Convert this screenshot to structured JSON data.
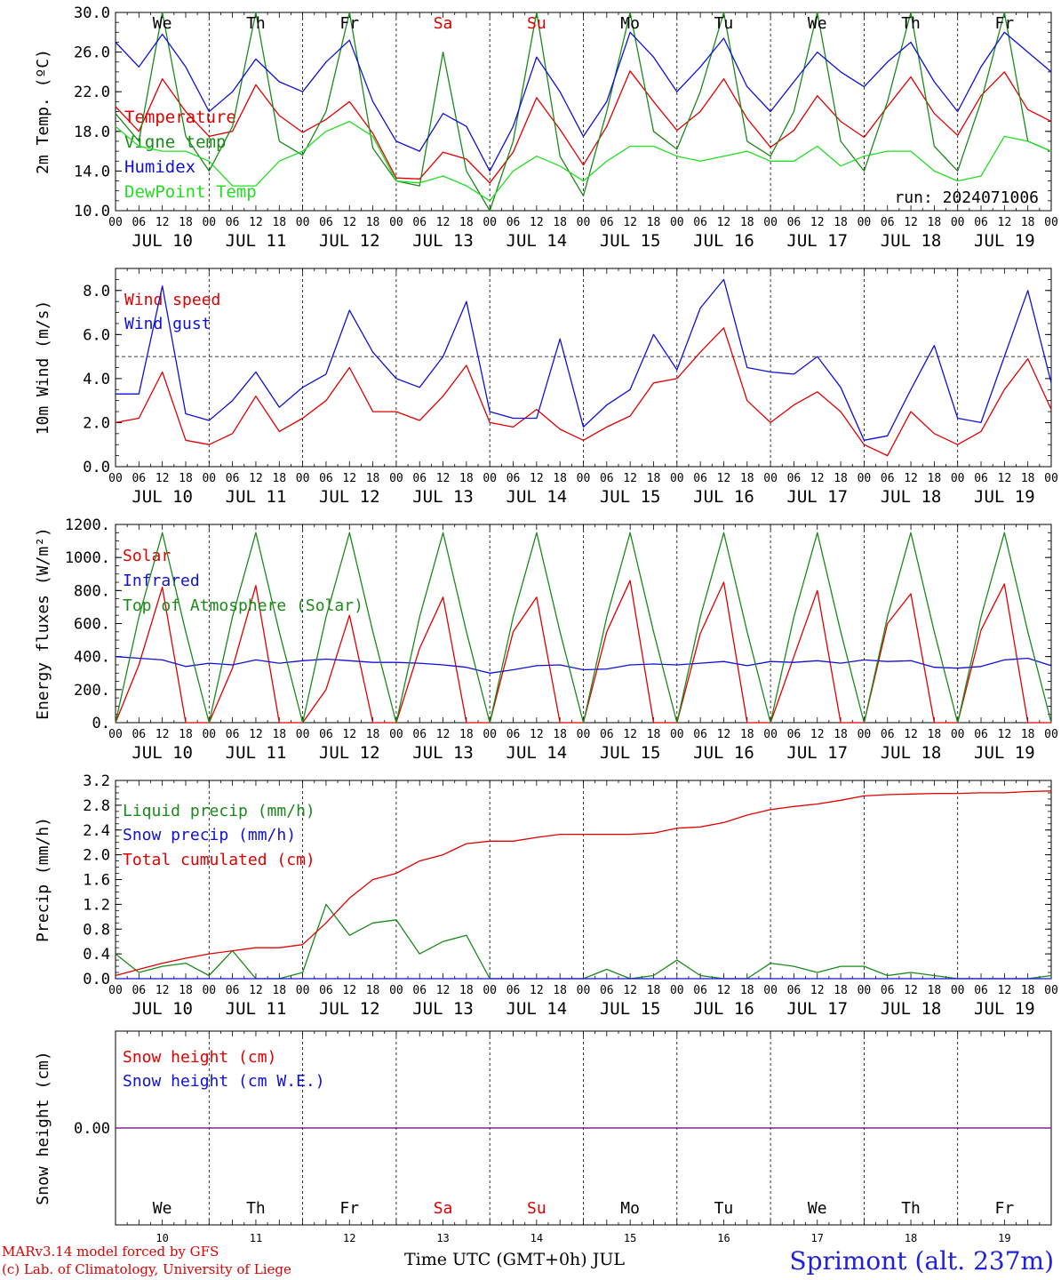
{
  "days": [
    "We",
    "Th",
    "Fr",
    "Sa",
    "Su",
    "Mo",
    "Tu",
    "We",
    "Th",
    "Fr"
  ],
  "weekend": [
    false,
    false,
    false,
    true,
    true,
    false,
    false,
    false,
    false,
    false
  ],
  "dates": [
    "JUL 10",
    "JUL 11",
    "JUL 12",
    "JUL 13",
    "JUL 14",
    "JUL 15",
    "JUL 16",
    "JUL 17",
    "JUL 18",
    "JUL 19"
  ],
  "day_numbers": [
    "10",
    "11",
    "12",
    "13",
    "14",
    "15",
    "16",
    "17",
    "18",
    "19"
  ],
  "hour_labels": [
    "00",
    "06",
    "12",
    "18"
  ],
  "final_hour_label": "00",
  "footer": {
    "credit_line1": "MARv3.14 model forced by GFS",
    "credit_line2": "(c) Lab. of Climatology, University of Liege",
    "xlabel": "Time UTC (GMT+0h) JUL",
    "station": "Sprimont (alt. 237m)"
  },
  "colors": {
    "red": "#e00000",
    "darkgreen": "#1a8a1a",
    "blue": "#1010d8",
    "lightgreen": "#22dd22",
    "purple": "#7a1a8a"
  },
  "chart_data": [
    {
      "type": "line",
      "ylabel": "2m Temp. (ºC)",
      "ylim": [
        10,
        30
      ],
      "yticks": [
        "10.0",
        "14.0",
        "18.0",
        "22.0",
        "26.0",
        "30.0"
      ],
      "annotation": "run: 2024071006",
      "x_hours": [
        0,
        6,
        12,
        18,
        24,
        30,
        36,
        42,
        48,
        54,
        60,
        66,
        72,
        78,
        84,
        90,
        96,
        102,
        108,
        114,
        120,
        126,
        132,
        138,
        144,
        150,
        156,
        162,
        168,
        174,
        180,
        186,
        192,
        198,
        204,
        210,
        216,
        222,
        228,
        234,
        240
      ],
      "series": [
        {
          "name": "Temperature",
          "color": "#e00000",
          "values": [
            20.5,
            18,
            23.3,
            20,
            17.5,
            18,
            22.7,
            19.6,
            17.9,
            19.2,
            21,
            17.8,
            13.3,
            13.2,
            15.9,
            15.2,
            12.8,
            15.9,
            21.4,
            18.2,
            14.6,
            18.5,
            24.1,
            21,
            18.1,
            20,
            23.3,
            19.3,
            16.4,
            18.1,
            21.6,
            19,
            17.4,
            20.5,
            23.5,
            19.8,
            17.6,
            21.6,
            24,
            20.2,
            19
          ]
        },
        {
          "name": "Vigne temp",
          "color": "#1a8a1a",
          "values": [
            19.8,
            17,
            30,
            17.5,
            14,
            18.5,
            30,
            17,
            15.6,
            20,
            30,
            16.3,
            13,
            12.5,
            26,
            14,
            10,
            17,
            30,
            15.5,
            11.5,
            20,
            30,
            18,
            16.2,
            22,
            30,
            17,
            15.5,
            20,
            30,
            17,
            14,
            21,
            30,
            16.5,
            14,
            21,
            30,
            17,
            16
          ]
        },
        {
          "name": "Humidex",
          "color": "#1010d8",
          "values": [
            27,
            24.5,
            27.8,
            24.5,
            20,
            22,
            25.3,
            23,
            22,
            25,
            27.2,
            21,
            17,
            16,
            19.8,
            18.5,
            14,
            18.5,
            25.5,
            22,
            17.5,
            21,
            28,
            25.5,
            22,
            24.5,
            27.4,
            22.5,
            20,
            23,
            26,
            24,
            22.5,
            25,
            27,
            23,
            20,
            24.5,
            28,
            26,
            24
          ]
        },
        {
          "name": "DewPoint Temp",
          "color": "#22dd22",
          "values": [
            18.5,
            16.5,
            16,
            16,
            15,
            12.5,
            12.5,
            15,
            16,
            18,
            19,
            17.5,
            13,
            12.8,
            13.5,
            12.5,
            11,
            14,
            15.5,
            14.5,
            13,
            15,
            16.5,
            16.5,
            15.5,
            15,
            15.5,
            16,
            15,
            15,
            16.5,
            14.5,
            15.5,
            16,
            16,
            14,
            13,
            13.5,
            17.5,
            17,
            16
          ]
        }
      ]
    },
    {
      "type": "line",
      "ylabel": "10m Wind (m/s)",
      "ylim": [
        0,
        9
      ],
      "yticks": [
        "0.0",
        "2.0",
        "4.0",
        "6.0",
        "8.0"
      ],
      "reference_line": 5,
      "x_hours": [
        0,
        6,
        12,
        18,
        24,
        30,
        36,
        42,
        48,
        54,
        60,
        66,
        72,
        78,
        84,
        90,
        96,
        102,
        108,
        114,
        120,
        126,
        132,
        138,
        144,
        150,
        156,
        162,
        168,
        174,
        180,
        186,
        192,
        198,
        204,
        210,
        216,
        222,
        228,
        234,
        240
      ],
      "series": [
        {
          "name": "Wind speed",
          "color": "#e00000",
          "values": [
            2,
            2.2,
            4.3,
            1.2,
            1,
            1.5,
            3.2,
            1.6,
            2.2,
            3,
            4.5,
            2.5,
            2.5,
            2.1,
            3.2,
            4.6,
            2,
            1.8,
            2.6,
            1.7,
            1.2,
            1.8,
            2.3,
            3.8,
            4,
            5.2,
            6.3,
            3,
            2,
            2.8,
            3.4,
            2.5,
            1,
            0.5,
            2.5,
            1.5,
            1,
            1.6,
            3.5,
            4.9,
            2.6
          ]
        },
        {
          "name": "Wind gust",
          "color": "#1010d8",
          "values": [
            3.3,
            3.3,
            8.2,
            2.4,
            2.1,
            3,
            4.3,
            2.7,
            3.6,
            4.2,
            7.1,
            5.2,
            4,
            3.6,
            5,
            7.5,
            2.5,
            2.2,
            2.2,
            5.8,
            1.8,
            2.8,
            3.5,
            6,
            4.4,
            7.2,
            8.5,
            4.5,
            4.3,
            4.2,
            5,
            3.6,
            1.2,
            1.4,
            3.5,
            5.5,
            2.2,
            2,
            5,
            8,
            3.8
          ]
        }
      ]
    },
    {
      "type": "line",
      "ylabel": "Energy fluxes (W/m²)",
      "ylim": [
        0,
        1200
      ],
      "yticks": [
        "0.",
        "200.",
        "400.",
        "600.",
        "800.",
        "1000.",
        "1200."
      ],
      "x_hours": [
        0,
        6,
        12,
        18,
        24,
        30,
        36,
        42,
        48,
        54,
        60,
        66,
        72,
        78,
        84,
        90,
        96,
        102,
        108,
        114,
        120,
        126,
        132,
        138,
        144,
        150,
        156,
        162,
        168,
        174,
        180,
        186,
        192,
        198,
        204,
        210,
        216,
        222,
        228,
        234,
        240
      ],
      "series": [
        {
          "name": "Solar",
          "color": "#e00000",
          "values": [
            0,
            350,
            820,
            0,
            0,
            330,
            830,
            0,
            0,
            200,
            650,
            0,
            0,
            450,
            760,
            0,
            0,
            550,
            760,
            0,
            0,
            550,
            860,
            0,
            0,
            540,
            850,
            0,
            0,
            400,
            800,
            0,
            0,
            600,
            780,
            0,
            0,
            560,
            840,
            0,
            0
          ]
        },
        {
          "name": "Infrared",
          "color": "#1010d8",
          "values": [
            400,
            390,
            380,
            340,
            360,
            350,
            380,
            360,
            375,
            385,
            375,
            365,
            365,
            360,
            350,
            335,
            300,
            320,
            345,
            350,
            320,
            325,
            350,
            355,
            350,
            360,
            370,
            345,
            370,
            365,
            375,
            360,
            380,
            370,
            375,
            335,
            330,
            340,
            380,
            390,
            345
          ]
        },
        {
          "name": "Top of Atmosphere (Solar)",
          "color": "#1a8a1a",
          "values": [
            0,
            640,
            1150,
            550,
            0,
            640,
            1150,
            550,
            0,
            640,
            1150,
            550,
            0,
            640,
            1150,
            550,
            0,
            640,
            1150,
            550,
            0,
            640,
            1150,
            550,
            0,
            640,
            1150,
            550,
            0,
            640,
            1150,
            550,
            0,
            640,
            1150,
            550,
            0,
            640,
            1150,
            550,
            0
          ]
        }
      ]
    },
    {
      "type": "line",
      "ylabel": "Precip (mm/h)",
      "ylim": [
        0,
        3.2
      ],
      "yticks": [
        "0.0",
        "0.4",
        "0.8",
        "1.2",
        "1.6",
        "2.0",
        "2.4",
        "2.8",
        "3.2"
      ],
      "x_hours": [
        0,
        6,
        12,
        18,
        24,
        30,
        36,
        42,
        48,
        54,
        60,
        66,
        72,
        78,
        84,
        90,
        96,
        102,
        108,
        114,
        120,
        126,
        132,
        138,
        144,
        150,
        156,
        162,
        168,
        174,
        180,
        186,
        192,
        198,
        204,
        210,
        216,
        222,
        228,
        234,
        240
      ],
      "series": [
        {
          "name": "Liquid precip (mm/h)",
          "color": "#1a8a1a",
          "values": [
            0.4,
            0.1,
            0.2,
            0.25,
            0.05,
            0.45,
            0,
            0,
            0.1,
            1.2,
            0.7,
            0.9,
            0.95,
            0.4,
            0.6,
            0.7,
            0,
            0,
            0,
            0,
            0,
            0.15,
            0,
            0.05,
            0.3,
            0.05,
            0,
            0,
            0.25,
            0.2,
            0.1,
            0.2,
            0.2,
            0.05,
            0.1,
            0.05,
            0,
            0,
            0,
            0,
            0.05
          ]
        },
        {
          "name": "Snow precip (mm/h)",
          "color": "#1010d8",
          "values": [
            0,
            0,
            0,
            0,
            0,
            0,
            0,
            0,
            0,
            0,
            0,
            0,
            0,
            0,
            0,
            0,
            0,
            0,
            0,
            0,
            0,
            0,
            0,
            0,
            0,
            0,
            0,
            0,
            0,
            0,
            0,
            0,
            0,
            0,
            0,
            0,
            0,
            0,
            0,
            0,
            0
          ]
        },
        {
          "name": "Total cumulated (cm)",
          "color": "#e00000",
          "values": [
            0.05,
            0.15,
            0.25,
            0.33,
            0.4,
            0.45,
            0.5,
            0.5,
            0.55,
            0.9,
            1.3,
            1.6,
            1.7,
            1.9,
            2.0,
            2.18,
            2.22,
            2.22,
            2.28,
            2.33,
            2.33,
            2.33,
            2.33,
            2.35,
            2.43,
            2.45,
            2.52,
            2.64,
            2.73,
            2.78,
            2.82,
            2.88,
            2.95,
            2.97,
            2.98,
            2.99,
            2.99,
            3.0,
            3.0,
            3.02,
            3.03
          ]
        }
      ]
    },
    {
      "type": "line",
      "ylabel": "Snow height (cm)",
      "ylim": [
        -1,
        1
      ],
      "yticks": [
        "0.00"
      ],
      "x_hours": [
        0,
        240
      ],
      "series": [
        {
          "name": "Snow height (cm)",
          "color": "#e00000",
          "values": [
            0,
            0
          ]
        },
        {
          "name": "Snow height (cm W.E.)",
          "color": "#1010d8",
          "values": [
            0,
            0
          ]
        }
      ]
    }
  ]
}
